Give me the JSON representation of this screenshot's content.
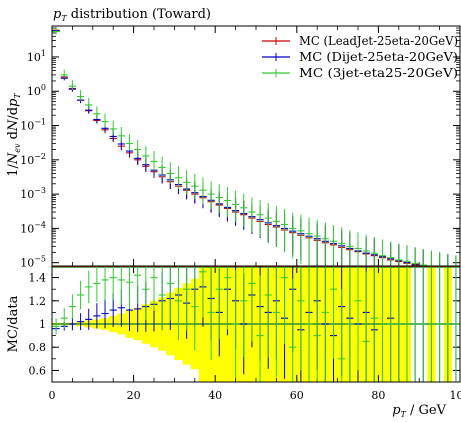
{
  "chart_data": [
    {
      "type": "line",
      "title": "p_T distribution (Toward)",
      "ylabel": "1/N_ev dN/dp_T",
      "xlabel": "p_T / GeV",
      "yscale": "log",
      "xlim": [
        0,
        100
      ],
      "ylim": [
        8e-06,
        80
      ],
      "yticks": [
        {
          "value": 10,
          "label": "10^1"
        },
        {
          "value": 1,
          "label": "10^0"
        },
        {
          "value": 0.1,
          "label": "10^-1"
        },
        {
          "value": 0.01,
          "label": "10^-2"
        },
        {
          "value": 0.001,
          "label": "10^-3"
        },
        {
          "value": 0.0001,
          "label": "10^-4"
        },
        {
          "value": 1e-05,
          "label": "10^-5"
        }
      ],
      "legend_position": "top-right",
      "series": [
        {
          "name": "MC (LeadJet-25eta-20GeV)",
          "color": "#cc0000",
          "x": [
            1,
            3,
            5,
            7,
            9,
            11,
            13,
            15,
            17,
            19,
            21,
            23,
            25,
            27,
            29,
            31,
            33,
            35,
            37,
            39,
            41,
            43,
            45,
            47,
            49,
            51,
            53,
            55,
            57,
            59,
            61,
            63,
            65,
            67,
            69,
            71,
            73,
            75,
            77,
            79,
            81,
            83,
            85,
            87,
            89,
            91,
            93,
            95,
            97,
            99
          ],
          "y": [
            60,
            2.6,
            1.2,
            0.55,
            0.27,
            0.14,
            0.075,
            0.042,
            0.025,
            0.016,
            0.01,
            0.0065,
            0.0045,
            0.0032,
            0.0023,
            0.0017,
            0.0013,
            0.001,
            0.00078,
            0.0006,
            0.00048,
            0.00038,
            0.0003,
            0.00025,
            0.0002,
            0.00016,
            0.00013,
            0.00011,
            9e-05,
            7.5e-05,
            6.3e-05,
            5.3e-05,
            4.5e-05,
            3.8e-05,
            3.3e-05,
            2.8e-05,
            2.4e-05,
            2.1e-05,
            1.8e-05,
            1.6e-05,
            1.4e-05,
            1.2e-05,
            1.08e-05,
            9.6e-06,
            8.6e-06,
            7.7e-06,
            6.9e-06,
            6.2e-06,
            5.6e-06,
            5e-06
          ]
        },
        {
          "name": "MC (Dijet-25eta-20GeV)",
          "color": "#0000cc",
          "x": [
            1,
            3,
            5,
            7,
            9,
            11,
            13,
            15,
            17,
            19,
            21,
            23,
            25,
            27,
            29,
            31,
            33,
            35,
            37,
            39,
            41,
            43,
            45,
            47,
            49,
            51,
            53,
            55,
            57,
            59,
            61,
            63,
            65,
            67,
            69,
            71,
            73,
            75,
            77,
            79,
            81,
            83,
            85,
            87,
            89,
            91,
            93,
            95,
            97,
            99
          ],
          "y": [
            58,
            2.4,
            1.15,
            0.55,
            0.28,
            0.15,
            0.083,
            0.048,
            0.029,
            0.018,
            0.011,
            0.0072,
            0.005,
            0.0036,
            0.0026,
            0.0019,
            0.0014,
            0.0011,
            0.00085,
            0.00066,
            0.00052,
            0.00041,
            0.00033,
            0.00027,
            0.00022,
            0.00018,
            0.000145,
            0.00012,
            0.0001,
            8.3e-05,
            7e-05,
            5.9e-05,
            5e-05,
            4.2e-05,
            3.6e-05,
            3.1e-05,
            2.6e-05,
            2.2e-05,
            1.9e-05,
            1.7e-05,
            1.5e-05,
            1.3e-05,
            1.15e-05,
            1.02e-05,
            9.1e-06,
            8.2e-06,
            7.3e-06,
            6.6e-06,
            6e-06,
            5.4e-06
          ]
        },
        {
          "name": "MC (3jet-eta25-20GeV)",
          "color": "#33cc33",
          "x": [
            1,
            3,
            5,
            7,
            9,
            11,
            13,
            15,
            17,
            19,
            21,
            23,
            25,
            27,
            29,
            31,
            33,
            35,
            37,
            39,
            41,
            43,
            45,
            47,
            49,
            51,
            53,
            55,
            57,
            59,
            61,
            63,
            65,
            67,
            69,
            71,
            73,
            75,
            77,
            79,
            81,
            83,
            85,
            87,
            89,
            91,
            93,
            95,
            97,
            99
          ],
          "y": [
            55,
            3.0,
            1.4,
            0.7,
            0.4,
            0.22,
            0.13,
            0.08,
            0.05,
            0.03,
            0.02,
            0.013,
            0.009,
            0.006,
            0.004,
            0.003,
            0.0022,
            0.0017,
            0.0013,
            0.001,
            0.0008,
            0.00065,
            0.0005,
            0.0004,
            0.0003,
            0.00025,
            0.0002,
            0.00016,
            0.00013,
            0.0001,
            8.5e-05,
            7e-05,
            6e-05,
            5e-05,
            4.2e-05,
            3.6e-05,
            3e-05,
            2.6e-05,
            2.2e-05,
            1.9e-05,
            1.6e-05,
            1.4e-05,
            1.2e-05,
            1.1e-05,
            9.5e-06,
            8.5e-06,
            7.6e-06,
            6.8e-06,
            6.1e-06,
            5.5e-06
          ]
        }
      ]
    },
    {
      "type": "line",
      "ylabel": "MC/data",
      "xlabel": "p_T / GeV",
      "xlim": [
        0,
        100
      ],
      "ylim": [
        0.5,
        1.5
      ],
      "yticks": [
        0.6,
        0.8,
        1,
        1.2,
        1.4
      ],
      "xticks": [
        0,
        20,
        40,
        60,
        80,
        100
      ],
      "band": {
        "color": "#ffff00",
        "x": [
          1,
          3,
          5,
          7,
          9,
          11,
          13,
          15,
          17,
          19,
          21,
          23,
          25,
          27,
          29,
          31,
          33,
          35,
          37,
          39,
          41,
          43,
          45,
          47,
          49,
          51,
          53,
          55,
          57,
          59,
          61,
          63,
          65,
          67,
          69,
          71,
          73,
          75,
          77,
          79,
          81,
          83,
          85,
          87,
          89,
          91,
          93,
          95,
          97,
          99
        ],
        "lo": [
          0.99,
          0.99,
          0.99,
          0.98,
          0.97,
          0.96,
          0.95,
          0.93,
          0.91,
          0.88,
          0.86,
          0.83,
          0.8,
          0.77,
          0.73,
          0.69,
          0.65,
          0.61,
          0.5,
          0.5,
          0.5,
          0.5,
          0.5,
          0.5,
          0.5,
          0.5,
          0.5,
          0.5,
          0.5,
          0.5,
          0.5,
          0.5,
          0.5,
          0.5,
          0.5,
          0.5,
          0.5,
          0.5,
          0.5,
          0.5,
          0.5,
          0.5,
          0.5,
          0.5,
          null,
          null,
          0.5,
          null,
          0.5,
          null
        ],
        "hi": [
          1.01,
          1.01,
          1.01,
          1.02,
          1.03,
          1.04,
          1.05,
          1.07,
          1.09,
          1.12,
          1.14,
          1.17,
          1.2,
          1.23,
          1.27,
          1.31,
          1.35,
          1.39,
          1.5,
          1.5,
          1.5,
          1.5,
          1.5,
          1.5,
          1.5,
          1.5,
          1.5,
          1.5,
          1.5,
          1.5,
          1.5,
          1.5,
          1.5,
          1.5,
          1.5,
          1.5,
          1.5,
          1.5,
          1.5,
          1.5,
          1.5,
          1.5,
          1.5,
          1.5,
          null,
          null,
          1.5,
          null,
          1.5,
          null
        ]
      },
      "series": [
        {
          "name": "MC (LeadJet-25eta-20GeV)",
          "color": "#cc0000",
          "x": [
            1,
            3,
            5,
            7,
            9,
            11,
            13,
            15,
            17,
            19,
            21,
            23,
            25,
            27,
            29,
            31,
            33,
            35,
            37,
            39,
            41,
            43,
            45,
            47,
            49,
            51,
            53,
            55,
            57,
            59,
            61,
            63,
            65,
            67,
            69,
            71,
            73,
            75,
            77,
            79,
            81,
            83,
            85,
            87,
            89,
            91,
            93,
            95,
            97,
            99
          ],
          "y": [
            0.95,
            0.99,
            1.0,
            1.01,
            1.0,
            1.0,
            1.0,
            1.0,
            1.0,
            0.99,
            1.0,
            1.0,
            1.0,
            1.0,
            1.0,
            1.0,
            1.0,
            1.0,
            1.0,
            1.0,
            1.0,
            1.0,
            1.0,
            1.0,
            1.0,
            1.0,
            1.0,
            1.0,
            1.0,
            1.0,
            1.0,
            1.0,
            1.0,
            1.0,
            1.0,
            1.0,
            1.0,
            1.0,
            1.0,
            1.0,
            1.0,
            1.0,
            1.0,
            1.0,
            1.0,
            1.0,
            1.0,
            1.0,
            1.0,
            1.0
          ]
        },
        {
          "name": "MC (Dijet-25eta-20GeV)",
          "color": "#0000cc",
          "x": [
            1,
            3,
            5,
            7,
            9,
            11,
            13,
            15,
            17,
            19,
            21,
            23,
            25,
            27,
            29,
            31,
            33,
            35,
            37,
            39,
            41,
            43,
            45,
            47,
            49,
            51,
            53,
            55,
            57,
            59,
            61,
            63,
            65,
            67,
            69,
            71,
            73,
            75,
            77,
            79,
            81,
            83,
            85,
            87,
            89,
            91,
            93,
            95,
            97,
            99
          ],
          "y": [
            0.96,
            0.98,
            1.0,
            1.02,
            1.04,
            1.07,
            1.09,
            1.12,
            1.14,
            1.12,
            1.13,
            1.15,
            1.17,
            1.2,
            1.22,
            1.25,
            1.18,
            1.3,
            1.32,
            1.22,
            1.1,
            1.3,
            1.2,
            1.0,
            1.25,
            1.15,
            1.1,
            1.2,
            1.05,
            1.3,
            0.95,
            1.1,
            1.2,
            1.0,
            0.9,
            1.15,
            1.05,
            1.0,
            1.1,
            0.95,
            1.0,
            1.05,
            1.0,
            1.0,
            1.0,
            1.0,
            1.0,
            1.0,
            1.0,
            1.0
          ]
        },
        {
          "name": "MC (3jet-eta25-20GeV)",
          "color": "#33cc33",
          "x": [
            1,
            3,
            5,
            7,
            9,
            11,
            13,
            15,
            17,
            19,
            21,
            23,
            25,
            27,
            29,
            31,
            33,
            35,
            37,
            39,
            41,
            43,
            45,
            47,
            49,
            51,
            53,
            55,
            57,
            59,
            61,
            63,
            65,
            67,
            69,
            71,
            73,
            75,
            77,
            79,
            81,
            83,
            85,
            87,
            89,
            91,
            93,
            95,
            97,
            99
          ],
          "y": [
            0.98,
            1.05,
            1.15,
            1.25,
            1.32,
            1.35,
            1.38,
            1.4,
            1.38,
            1.36,
            1.42,
            1.3,
            1.4,
            1.25,
            1.35,
            1.2,
            1.3,
            1.15,
            1.45,
            1.1,
            1.3,
            1.4,
            1.0,
            1.2,
            1.35,
            0.9,
            1.25,
            1.1,
            1.4,
            0.8,
            1.2,
            1.0,
            0.9,
            1.1,
            1.3,
            0.7,
            1.0,
            1.2,
            0.85,
            1.05,
            1.0,
            1.0,
            1.0,
            1.0,
            1.0,
            1.0,
            1.0,
            1.0,
            1.0,
            1.0
          ]
        }
      ]
    }
  ]
}
